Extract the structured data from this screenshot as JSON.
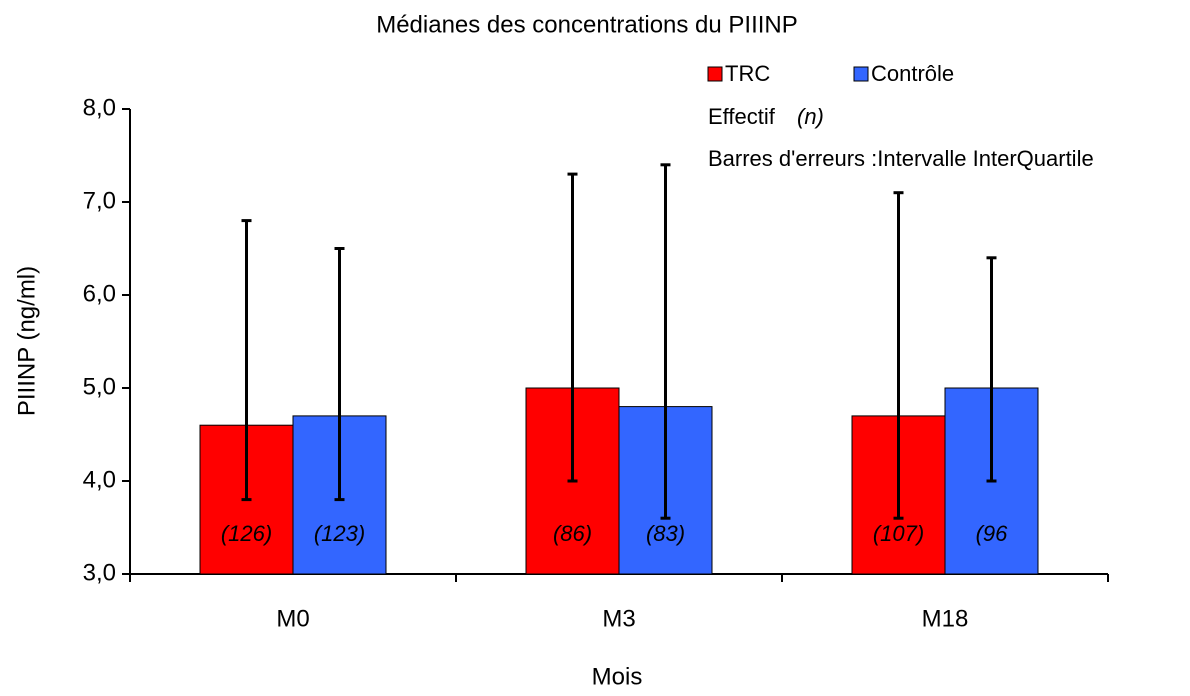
{
  "chart_data": {
    "type": "bar",
    "title": "Médianes des concentrations du PIIINP",
    "y_label": "PIIINP (ng/ml)",
    "x_label": "Mois",
    "annotations": [
      "Effectif",
      "(n)",
      "Barres d'erreurs :Intervalle InterQuartile"
    ],
    "categories": [
      "M0",
      "M3",
      "M18"
    ],
    "series": [
      {
        "name": "TRC",
        "color": "#ff0000",
        "values": [
          4.6,
          5.0,
          4.7
        ],
        "err_low": [
          3.8,
          4.0,
          3.6
        ],
        "err_high": [
          6.8,
          7.3,
          7.1
        ],
        "counts": [
          "(126)",
          "(86)",
          "(107)"
        ]
      },
      {
        "name": "Contrôle",
        "color": "#3366ff",
        "values": [
          4.7,
          4.8,
          5.0
        ],
        "err_low": [
          3.8,
          3.6,
          4.0
        ],
        "err_high": [
          6.5,
          7.4,
          6.4
        ],
        "counts": [
          "(123)",
          "(83)",
          "(96"
        ]
      }
    ],
    "ylim": [
      3,
      8
    ],
    "yticks": [
      {
        "value": 3,
        "label": "3,0"
      },
      {
        "value": 4,
        "label": "4,0"
      },
      {
        "value": 5,
        "label": "5,0"
      },
      {
        "value": 6,
        "label": "6,0"
      },
      {
        "value": 7,
        "label": "7,0"
      },
      {
        "value": 8,
        "label": "8,0"
      }
    ],
    "grid": false
  }
}
